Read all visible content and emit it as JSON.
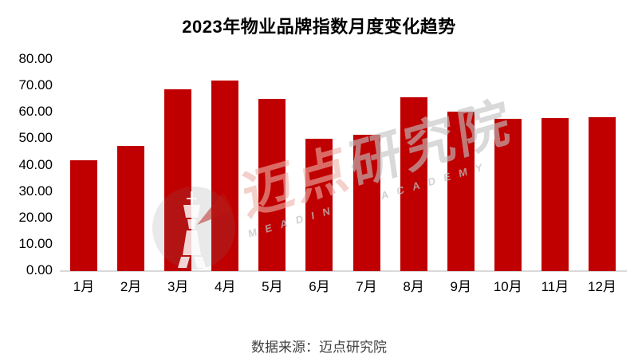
{
  "page": {
    "source_note": "数据来源：迈点研究院"
  },
  "chart_data": {
    "type": "bar",
    "title": "2023年物业品牌指数月度变化趋势",
    "categories": [
      "1月",
      "2月",
      "3月",
      "4月",
      "5月",
      "6月",
      "7月",
      "8月",
      "9月",
      "10月",
      "11月",
      "12月"
    ],
    "values": [
      41.7,
      47.1,
      68.4,
      72.0,
      64.9,
      49.9,
      51.4,
      65.5,
      60.2,
      57.3,
      57.6,
      58.0
    ],
    "xlabel": "",
    "ylabel": "",
    "ylim": [
      0,
      80
    ],
    "ytick_step": 10,
    "ytick_labels": [
      "80.00",
      "70.00",
      "60.00",
      "50.00",
      "40.00",
      "30.00",
      "20.00",
      "10.00",
      "0.00"
    ],
    "grid": false,
    "legend_position": "none",
    "bar_color": "#C00000",
    "axis_line_color": "#D9D9D9",
    "tick_label_color": "#000000"
  },
  "watermark": {
    "logo_icon": "meadin-tower-logo",
    "cn_red": "迈点",
    "cn_gray": "研究院",
    "en_word1": "MEADIN",
    "en_word2": "ACADEMY"
  }
}
